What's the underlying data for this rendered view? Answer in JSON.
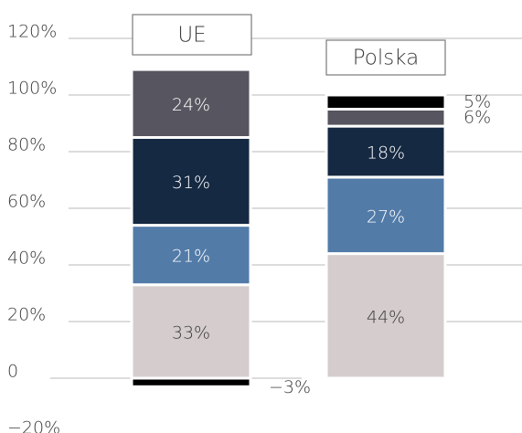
{
  "chart_data": {
    "type": "stacked_bar",
    "categories": [
      "UE",
      "Polska"
    ],
    "series": [
      {
        "color": "#d5cdcd",
        "values": [
          33,
          44
        ],
        "value_labels": [
          "33%",
          "44%"
        ]
      },
      {
        "color": "#527ba8",
        "values": [
          21,
          27
        ],
        "value_labels": [
          "21%",
          "27%"
        ]
      },
      {
        "color": "#152942",
        "values": [
          31,
          18
        ],
        "value_labels": [
          "31%",
          "18%"
        ]
      },
      {
        "color": "#57555f",
        "values": [
          24,
          6
        ],
        "value_labels": [
          "24%",
          "6%"
        ]
      },
      {
        "color": "#000000",
        "values": [
          -3,
          5
        ],
        "value_labels": [
          "−3%",
          "5%"
        ]
      }
    ],
    "ylim": [
      -20,
      120
    ],
    "yticks": [
      {
        "value": -20,
        "label": "−20%"
      },
      0,
      {
        "value": 20,
        "label": "20%"
      },
      {
        "value": 40,
        "label": "40%"
      },
      {
        "value": 60,
        "label": "60%"
      },
      {
        "value": 80,
        "label": "80%"
      },
      {
        "value": 100,
        "label": "100%"
      },
      {
        "value": 120,
        "label": "120%"
      }
    ],
    "grid": true
  }
}
